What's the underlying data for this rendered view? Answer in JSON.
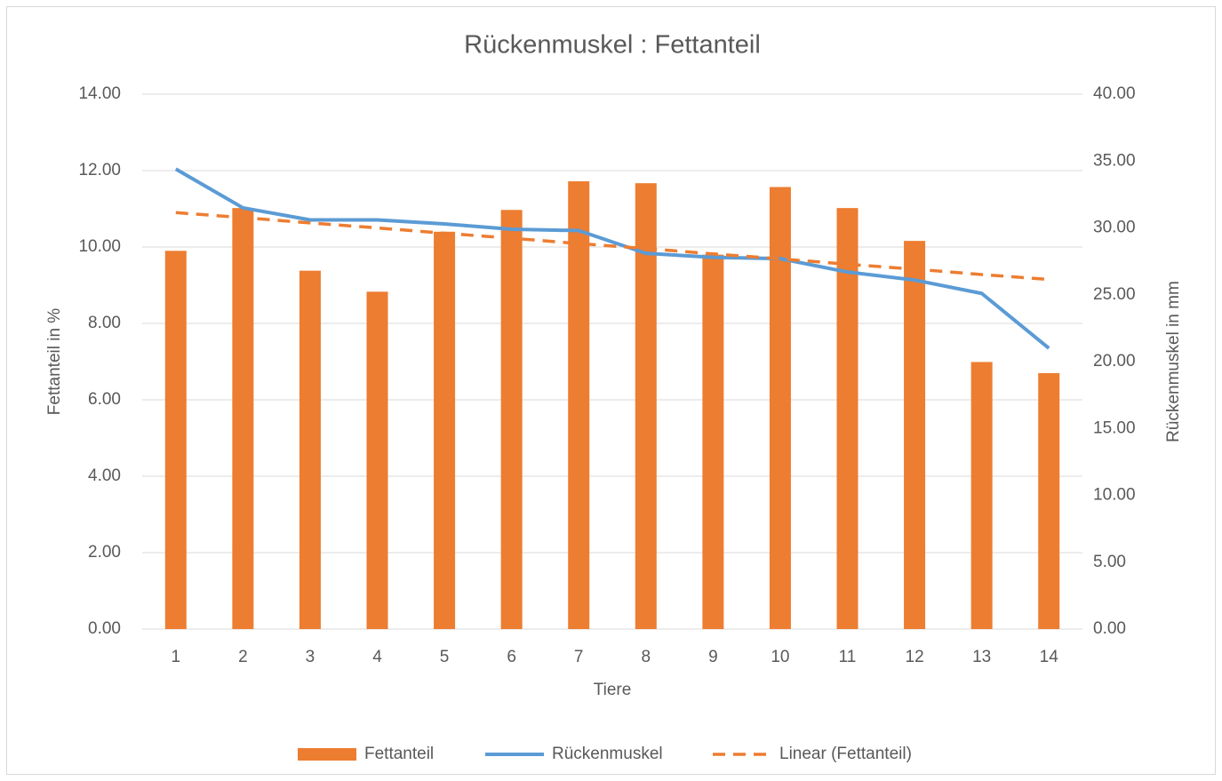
{
  "chart_data": {
    "type": "bar_line",
    "title": "Rückenmuskel : Fettanteil",
    "x_label": "Tiere",
    "y_label": "Fettanteil in %",
    "y2_label": "Rückenmuskel in mm",
    "categories": [
      "1",
      "2",
      "3",
      "4",
      "5",
      "6",
      "7",
      "8",
      "9",
      "10",
      "11",
      "12",
      "13",
      "14"
    ],
    "series": [
      {
        "name": "Fettanteil",
        "kind": "bar",
        "color": "#ed7d31",
        "values": [
          9.9,
          11.02,
          9.38,
          8.83,
          10.4,
          10.97,
          11.72,
          11.67,
          9.8,
          11.57,
          11.02,
          10.16,
          6.99,
          6.7
        ]
      },
      {
        "name": "Rückenmuskel",
        "kind": "line",
        "axis": "y2",
        "color": "#5b9bd5",
        "values": [
          34.4,
          31.5,
          30.6,
          30.6,
          30.3,
          29.9,
          29.8,
          28.1,
          27.8,
          27.7,
          26.7,
          26.1,
          25.1,
          21.0
        ]
      },
      {
        "name": "Linear (Fettanteil)",
        "kind": "dashed",
        "color": "#ed7d31",
        "values": [
          10.9,
          10.77,
          10.63,
          10.5,
          10.36,
          10.23,
          10.09,
          9.96,
          9.82,
          9.69,
          9.55,
          9.42,
          9.28,
          9.15
        ]
      }
    ],
    "ylim": [
      0,
      14
    ],
    "yticks": [
      {
        "value": 0,
        "label": "0.00"
      },
      {
        "value": 2,
        "label": "2.00"
      },
      {
        "value": 4,
        "label": "4.00"
      },
      {
        "value": 6,
        "label": "6.00"
      },
      {
        "value": 8,
        "label": "8.00"
      },
      {
        "value": 10,
        "label": "10.00"
      },
      {
        "value": 12,
        "label": "12.00"
      },
      {
        "value": 14,
        "label": "14.00"
      }
    ],
    "y2lim": [
      0,
      40
    ],
    "y2ticks": [
      {
        "value": 0,
        "label": "0.00"
      },
      {
        "value": 5,
        "label": "5.00"
      },
      {
        "value": 10,
        "label": "10.00"
      },
      {
        "value": 15,
        "label": "15.00"
      },
      {
        "value": 20,
        "label": "20.00"
      },
      {
        "value": 25,
        "label": "25.00"
      },
      {
        "value": 30,
        "label": "30.00"
      },
      {
        "value": 35,
        "label": "35.00"
      },
      {
        "value": 40,
        "label": "40.00"
      }
    ],
    "grid": true,
    "legend": "bottom"
  }
}
